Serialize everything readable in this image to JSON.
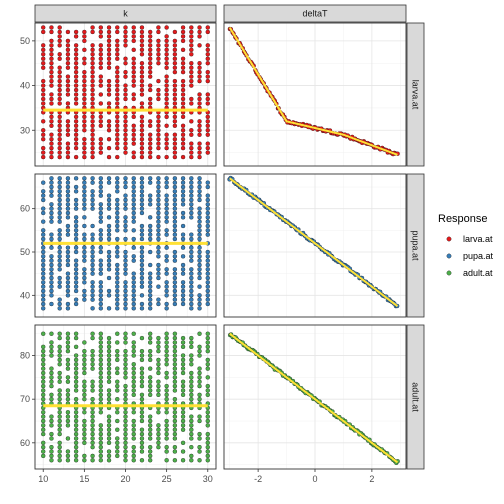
{
  "chart_data": {
    "type": "scatter",
    "facet_columns": [
      "k",
      "deltaT"
    ],
    "facet_rows": [
      "larva.at",
      "pupa.at",
      "adult.at"
    ],
    "legend": {
      "title": "Response",
      "placement": "right",
      "entries": [
        {
          "label": "larva.at",
          "color": "#e41a1c"
        },
        {
          "label": "pupa.at",
          "color": "#377eb8"
        },
        {
          "label": "adult.at",
          "color": "#4daf4a"
        }
      ]
    },
    "fit_line_color": "#ffe135",
    "axes": {
      "k": {
        "range": [
          9.0,
          31.0
        ],
        "ticks": [
          10,
          15,
          20,
          25,
          30
        ],
        "tick_labels": [
          "10",
          "15",
          "20",
          "25",
          "30"
        ]
      },
      "deltaT": {
        "range": [
          -3.2,
          3.2
        ],
        "ticks": [
          -2,
          0,
          2
        ],
        "tick_labels": [
          "-2",
          "0",
          "2"
        ]
      },
      "larva.at": {
        "range": [
          22,
          54
        ],
        "ticks": [
          30,
          40,
          50
        ],
        "tick_labels": [
          "30",
          "40",
          "50"
        ]
      },
      "pupa.at": {
        "range": [
          35,
          68
        ],
        "ticks": [
          40,
          50,
          60
        ],
        "tick_labels": [
          "40",
          "50",
          "60"
        ]
      },
      "adult.at": {
        "range": [
          54,
          87
        ],
        "ticks": [
          60,
          70,
          80
        ],
        "tick_labels": [
          "60",
          "70",
          "80"
        ]
      }
    },
    "k_values": [
      10,
      11,
      12,
      13,
      14,
      15,
      16,
      17,
      18,
      19,
      20,
      21,
      22,
      23,
      24,
      25,
      26,
      27,
      28,
      29,
      30
    ],
    "k_panel": {
      "larva.at": {
        "y_min": 24,
        "y_max": 53,
        "y_step": 1,
        "density": 0.82,
        "mean": 34.5
      },
      "pupa.at": {
        "y_min": 37,
        "y_max": 67,
        "y_step": 1,
        "density": 0.82,
        "mean": 52.0
      },
      "adult.at": {
        "y_min": 56,
        "y_max": 85,
        "y_step": 1,
        "density": 0.82,
        "mean": 68.5
      }
    },
    "deltaT_panel": {
      "x_min": -3.0,
      "x_max": 2.9,
      "n_points": 120,
      "larva.at": {
        "curve": [
          [
            -3.0,
            53
          ],
          [
            -1.0,
            32
          ],
          [
            0.0,
            30.5
          ],
          [
            1.0,
            29
          ],
          [
            2.9,
            24.5
          ]
        ]
      },
      "pupa.at": {
        "curve": [
          [
            -3.0,
            67
          ],
          [
            2.9,
            37.5
          ]
        ]
      },
      "adult.at": {
        "curve": [
          [
            -3.0,
            85
          ],
          [
            2.9,
            55.5
          ]
        ]
      }
    }
  }
}
